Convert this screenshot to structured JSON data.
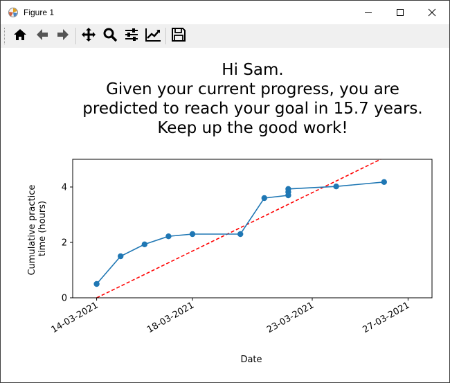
{
  "window": {
    "title": "Figure 1",
    "minimize_icon": "minimize-icon",
    "maximize_icon": "maximize-icon",
    "close_icon": "close-icon"
  },
  "toolbar": {
    "items": [
      "home-icon",
      "back-arrow-icon",
      "forward-arrow-icon",
      "pan-move-icon",
      "zoom-magnifier-icon",
      "configure-subplots-icon",
      "edit-axis-icon",
      "save-floppy-icon"
    ]
  },
  "chart_data": {
    "type": "line",
    "title_lines": [
      "Hi Sam.",
      "Given your current progress, you are",
      "predicted to reach your goal in 15.7 years.",
      "Keep up the good work!"
    ],
    "xlabel": "Date",
    "ylabel_lines": [
      "Cumulative practice",
      "time (hours)"
    ],
    "x_tick_labels": [
      "14-03-2021",
      "18-03-2021",
      "23-03-2021",
      "27-03-2021"
    ],
    "x_tick_dates": [
      "2021-03-14",
      "2021-03-18",
      "2021-03-23",
      "2021-03-27"
    ],
    "y_ticks": [
      0,
      2,
      4
    ],
    "ylim": [
      0,
      5
    ],
    "xlim": [
      "2021-03-13",
      "2021-03-28"
    ],
    "grid": false,
    "series": [
      {
        "color": "#1f77b4",
        "marker": "circle",
        "points": [
          {
            "x": "2021-03-14",
            "y": 0.5
          },
          {
            "x": "2021-03-15",
            "y": 1.5
          },
          {
            "x": "2021-03-16",
            "y": 1.93
          },
          {
            "x": "2021-03-17",
            "y": 2.22
          },
          {
            "x": "2021-03-18",
            "y": 2.3
          },
          {
            "x": "2021-03-20",
            "y": 2.3
          },
          {
            "x": "2021-03-21",
            "y": 3.6
          },
          {
            "x": "2021-03-22",
            "y": 3.7
          },
          {
            "x": "2021-03-22",
            "y": 3.82
          },
          {
            "x": "2021-03-22",
            "y": 3.93
          },
          {
            "x": "2021-03-24",
            "y": 4.02
          },
          {
            "x": "2021-03-26",
            "y": 4.18
          }
        ]
      }
    ],
    "trendline": {
      "color": "#ff0000",
      "style": "dashed",
      "points": [
        {
          "x": "2021-03-14",
          "y": 0
        },
        {
          "x": "2021-03-26",
          "y": 5.06
        }
      ]
    }
  }
}
